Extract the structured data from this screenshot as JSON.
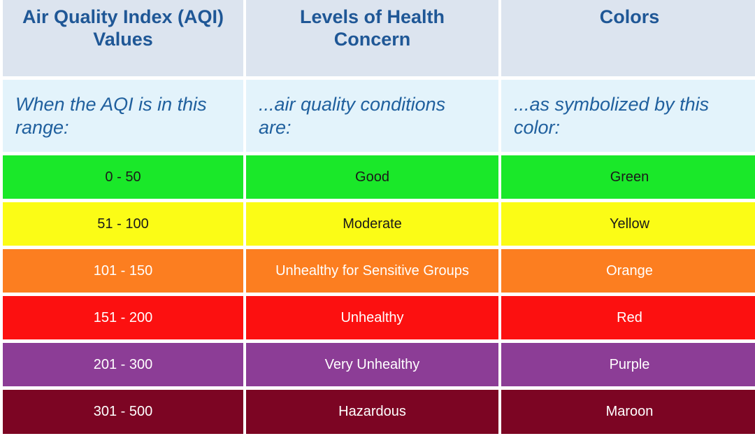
{
  "header": {
    "col1_line1": "Air Quality Index (AQI)",
    "col1_line2": "Values",
    "col2_line1": "Levels of Health",
    "col2_line2": "Concern",
    "col3_line1": "Colors"
  },
  "subheader": {
    "col1_line1": "When the AQI is in this",
    "col1_line2": "range:",
    "col2_line1": "...air quality conditions",
    "col2_line2": "are:",
    "col3_line1": "...as symbolized by this",
    "col3_line2": "color:"
  },
  "rows": [
    {
      "range": "0 - 50",
      "level": "Good",
      "color": "Green",
      "bg": "#1ae829",
      "text": "#1a1a1a"
    },
    {
      "range": "51 - 100",
      "level": "Moderate",
      "color": "Yellow",
      "bg": "#fbfc16",
      "text": "#1a1a1a"
    },
    {
      "range": "101 - 150",
      "level": "Unhealthy for Sensitive Groups",
      "color": "Orange",
      "bg": "#fc7e20",
      "text": "#ffffff"
    },
    {
      "range": "151 - 200",
      "level": "Unhealthy",
      "color": "Red",
      "bg": "#fc1010",
      "text": "#ffffff"
    },
    {
      "range": "201 - 300",
      "level": "Very Unhealthy",
      "color": "Purple",
      "bg": "#8c3d96",
      "text": "#ffffff"
    },
    {
      "range": "301 - 500",
      "level": "Hazardous",
      "color": "Maroon",
      "bg": "#7c0523",
      "text": "#ffffff"
    }
  ]
}
